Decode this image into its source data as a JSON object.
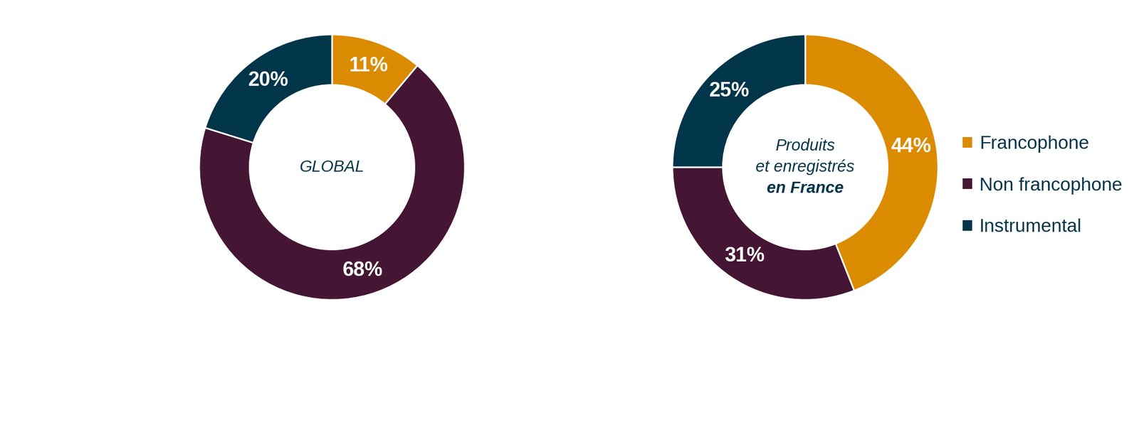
{
  "chart_data": [
    {
      "type": "pie",
      "title": "GLOBAL",
      "categories": [
        "Francophone",
        "Non francophone",
        "Instrumental"
      ],
      "values": [
        11,
        68,
        20
      ],
      "value_labels": [
        "11%",
        "68%",
        "20%"
      ],
      "colors": [
        "#db8b00",
        "#441634",
        "#00354a"
      ],
      "data_labels": true
    },
    {
      "type": "pie",
      "title": "Produits\net enregistrés\nen France",
      "categories": [
        "Francophone",
        "Non francophone",
        "Instrumental"
      ],
      "values": [
        44,
        31,
        25
      ],
      "value_labels": [
        "44%",
        "31%",
        "25%"
      ],
      "colors": [
        "#db8b00",
        "#441634",
        "#00354a"
      ],
      "data_labels": true,
      "legend": "right"
    }
  ]
}
